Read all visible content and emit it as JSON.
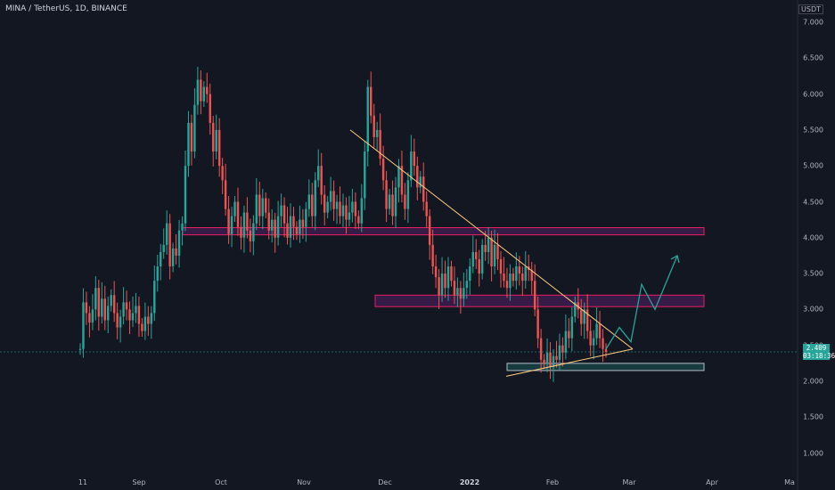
{
  "title": "MINA / TetherUS, 1D, BINANCE",
  "unit": "USDT",
  "last_price": "2.409",
  "countdown": "03:18:36",
  "colors": {
    "up": "#26a69a",
    "down": "#ef5350",
    "zone_border": "#e91e63",
    "zone_fill": "rgba(156,39,176,0.25)",
    "support_border": "#b0bec5",
    "trendline": "#ffcc80",
    "projection": "#26a69a"
  },
  "chart_data": {
    "type": "candlestick",
    "y_ticks": [
      "7.000",
      "6.500",
      "6.000",
      "5.500",
      "5.000",
      "4.500",
      "4.000",
      "3.500",
      "3.000",
      "2.500",
      "2.000",
      "1.500",
      "1.000"
    ],
    "x_ticks": [
      "11",
      "Sep",
      "Oct",
      "Nov",
      "Dec",
      "2022",
      "Feb",
      "Mar",
      "Apr",
      "Ma"
    ],
    "bold_x_tick": "2022",
    "candles_close": [
      2.45,
      3.1,
      2.95,
      2.82,
      3.0,
      3.3,
      2.9,
      3.15,
      2.85,
      3.05,
      3.2,
      2.95,
      2.75,
      2.9,
      3.1,
      3.0,
      2.85,
      2.95,
      3.05,
      2.8,
      2.7,
      2.9,
      2.8,
      2.95,
      3.4,
      3.6,
      3.8,
      3.9,
      4.2,
      3.6,
      3.85,
      3.75,
      4.1,
      4.2,
      5.0,
      5.6,
      5.2,
      5.85,
      6.2,
      5.9,
      6.1,
      6.0,
      5.6,
      5.2,
      5.5,
      5.0,
      4.8,
      4.4,
      4.05,
      4.3,
      4.5,
      4.15,
      4.0,
      4.35,
      4.1,
      3.95,
      4.2,
      4.6,
      4.3,
      4.55,
      4.35,
      4.1,
      4.25,
      4.0,
      4.3,
      4.45,
      4.2,
      4.0,
      4.3,
      4.15,
      4.05,
      4.25,
      4.15,
      4.4,
      4.6,
      4.3,
      4.8,
      5.0,
      4.6,
      4.35,
      4.5,
      4.65,
      4.4,
      4.5,
      4.3,
      4.45,
      4.25,
      4.35,
      4.5,
      4.3,
      4.2,
      4.55,
      5.2,
      6.1,
      5.7,
      5.4,
      5.5,
      5.1,
      4.8,
      4.4,
      4.6,
      4.3,
      4.7,
      5.0,
      4.6,
      4.4,
      4.8,
      5.2,
      5.0,
      4.7,
      4.85,
      4.5,
      4.3,
      3.9,
      3.6,
      3.45,
      3.2,
      3.5,
      3.3,
      3.6,
      3.4,
      3.2,
      3.3,
      3.15,
      3.3,
      3.4,
      3.6,
      3.8,
      3.7,
      3.5,
      3.9,
      3.8,
      4.0,
      3.6,
      3.9,
      3.7,
      3.5,
      3.4,
      3.3,
      3.5,
      3.4,
      3.6,
      3.5,
      3.4,
      3.6,
      3.55,
      3.4,
      3.0,
      2.6,
      2.3,
      2.25,
      2.4,
      2.2,
      2.35,
      2.3,
      2.5,
      2.4,
      2.7,
      2.6,
      2.9,
      3.1,
      3.0,
      2.8,
      3.0,
      2.7,
      2.5,
      2.6,
      2.8,
      2.6,
      2.45,
      2.41
    ]
  },
  "annotations": {
    "resistance_zone_1": [
      4.04,
      4.14
    ],
    "resistance_zone_2": [
      3.04,
      3.2
    ],
    "support_zone": [
      2.15,
      2.25
    ],
    "descending_trendline_prices": [
      5.5,
      2.45
    ],
    "ascending_trendline_prices": [
      2.07,
      2.45
    ],
    "projection_prices": [
      2.45,
      2.75,
      2.55,
      3.35,
      3.0,
      3.75
    ]
  }
}
